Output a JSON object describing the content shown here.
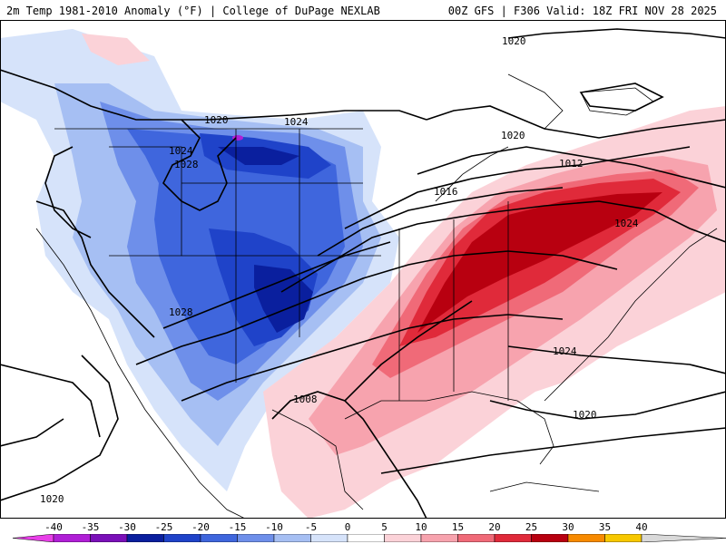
{
  "header": {
    "title": "2m Temp 1981-2010 Anomaly (°F) | College of DuPage NEXLAB",
    "run_info": "00Z GFS | F306 Valid: 18Z FRI NOV 28 2025"
  },
  "map": {
    "isobar_labels": [
      "1020",
      "1020",
      "1024",
      "1024",
      "1028",
      "1020",
      "1012",
      "1016",
      "1024",
      "1028",
      "1008",
      "1024",
      "1020",
      "1020"
    ]
  },
  "legend": {
    "ticks": [
      "-40",
      "-35",
      "-30",
      "-25",
      "-20",
      "-15",
      "-10",
      "-5",
      "0",
      "5",
      "10",
      "15",
      "20",
      "25",
      "30",
      "35",
      "40"
    ],
    "colors": [
      "#e83fe8",
      "#b01fd6",
      "#7a10b8",
      "#0a1f9e",
      "#1f43c9",
      "#3f66dd",
      "#6e8fea",
      "#a6bff3",
      "#d6e3fa",
      "#ffffff",
      "#fbd2d8",
      "#f7a3ae",
      "#f06a78",
      "#e02a3a",
      "#b80010",
      "#f78a00",
      "#f7c800",
      "#d9d9d9"
    ]
  }
}
